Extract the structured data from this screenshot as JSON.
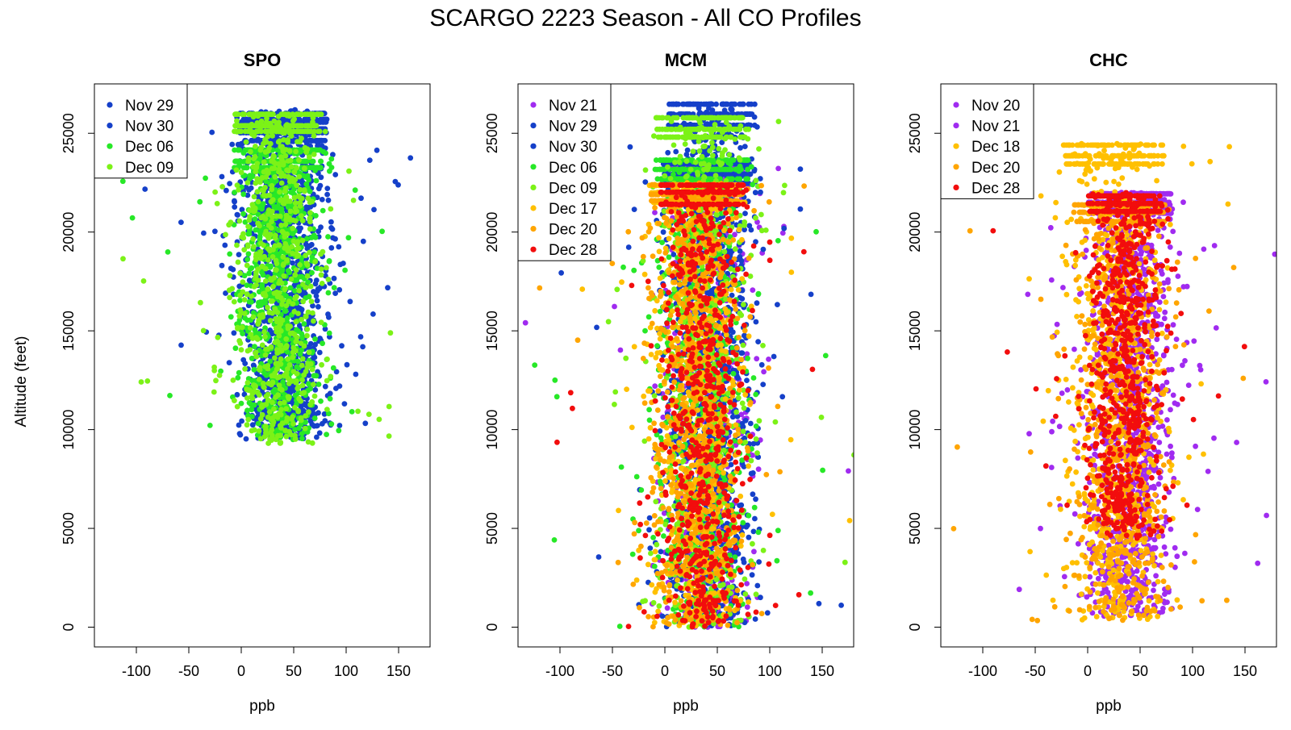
{
  "title": "SCARGO 2223 Season - All CO Profiles",
  "y_axis_label": "Altitude (feet)",
  "chart_data": [
    {
      "type": "scatter",
      "title": "SPO",
      "xlabel": "ppb",
      "ylabel": "Altitude (feet)",
      "xlim": [
        -140,
        180
      ],
      "ylim": [
        -1000,
        27500
      ],
      "x_ticks": [
        -100,
        -50,
        0,
        50,
        100,
        150
      ],
      "y_ticks": [
        0,
        5000,
        10000,
        15000,
        20000,
        25000
      ],
      "x_tick_labels": [
        "-100",
        "-50",
        "0",
        "50",
        "100",
        "150"
      ],
      "y_tick_labels": [
        "0",
        "5000",
        "10000",
        "15000",
        "20000",
        "25000"
      ],
      "legend_position": "top-left",
      "series": [
        {
          "name": "Nov 29",
          "color": "#1540c9",
          "alt_range": [
            9500,
            26200
          ],
          "center": 40,
          "spread": 26
        },
        {
          "name": "Nov 30",
          "color": "#1540c9",
          "alt_range": [
            9500,
            25600
          ],
          "center": 40,
          "spread": 26
        },
        {
          "name": "Dec 06",
          "color": "#27e827",
          "alt_range": [
            9500,
            24200
          ],
          "center": 35,
          "spread": 26
        },
        {
          "name": "Dec 09",
          "color": "#7cf217",
          "alt_range": [
            9300,
            26000
          ],
          "center": 35,
          "spread": 26
        }
      ]
    },
    {
      "type": "scatter",
      "title": "MCM",
      "xlabel": "ppb",
      "ylabel": "",
      "xlim": [
        -140,
        180
      ],
      "ylim": [
        -1000,
        27500
      ],
      "x_ticks": [
        -100,
        -50,
        0,
        50,
        100,
        150
      ],
      "y_ticks": [
        0,
        5000,
        10000,
        15000,
        20000,
        25000
      ],
      "x_tick_labels": [
        "-100",
        "-50",
        "0",
        "50",
        "100",
        "150"
      ],
      "y_tick_labels": [
        "0",
        "5000",
        "10000",
        "15000",
        "20000",
        "25000"
      ],
      "legend_position": "top-left",
      "series": [
        {
          "name": "Nov 21",
          "color": "#a02bf0",
          "alt_range": [
            0,
            23400
          ],
          "center": 40,
          "spread": 26
        },
        {
          "name": "Nov 29",
          "color": "#1540c9",
          "alt_range": [
            0,
            26500
          ],
          "center": 45,
          "spread": 26
        },
        {
          "name": "Nov 30",
          "color": "#1540c9",
          "alt_range": [
            0,
            23500
          ],
          "center": 40,
          "spread": 26
        },
        {
          "name": "Dec 06",
          "color": "#27e827",
          "alt_range": [
            0,
            23700
          ],
          "center": 35,
          "spread": 28
        },
        {
          "name": "Dec 09",
          "color": "#7cf217",
          "alt_range": [
            0,
            25800
          ],
          "center": 35,
          "spread": 28
        },
        {
          "name": "Dec 17",
          "color": "#ffc000",
          "alt_range": [
            0,
            22500
          ],
          "center": 30,
          "spread": 28
        },
        {
          "name": "Dec 20",
          "color": "#ffa500",
          "alt_range": [
            0,
            22500
          ],
          "center": 30,
          "spread": 28
        },
        {
          "name": "Dec 28",
          "color": "#f20d0d",
          "alt_range": [
            0,
            22500
          ],
          "center": 35,
          "spread": 25
        }
      ]
    },
    {
      "type": "scatter",
      "title": "CHC",
      "xlabel": "ppb",
      "ylabel": "",
      "xlim": [
        -140,
        180
      ],
      "ylim": [
        -1000,
        27500
      ],
      "x_ticks": [
        -100,
        -50,
        0,
        50,
        100,
        150
      ],
      "y_ticks": [
        0,
        5000,
        10000,
        15000,
        20000,
        25000
      ],
      "x_tick_labels": [
        "-100",
        "-50",
        "0",
        "50",
        "100",
        "150"
      ],
      "y_tick_labels": [
        "0",
        "5000",
        "10000",
        "15000",
        "20000",
        "25000"
      ],
      "legend_position": "top-left",
      "series": [
        {
          "name": "Nov 20",
          "color": "#a02bf0",
          "alt_range": [
            500,
            22000
          ],
          "center": 40,
          "spread": 25
        },
        {
          "name": "Nov 21",
          "color": "#a02bf0",
          "alt_range": [
            500,
            22000
          ],
          "center": 40,
          "spread": 25
        },
        {
          "name": "Dec 18",
          "color": "#ffc000",
          "alt_range": [
            300,
            24500
          ],
          "center": 25,
          "spread": 30
        },
        {
          "name": "Dec 20",
          "color": "#ffa500",
          "alt_range": [
            300,
            21500
          ],
          "center": 30,
          "spread": 28
        },
        {
          "name": "Dec 28",
          "color": "#f20d0d",
          "alt_range": [
            4500,
            22000
          ],
          "center": 35,
          "spread": 22
        }
      ]
    }
  ]
}
